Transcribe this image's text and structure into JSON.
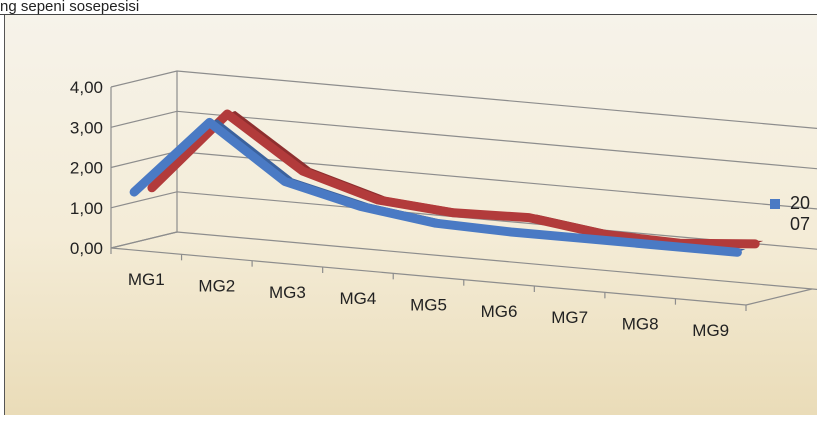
{
  "caption": "ng sepeni sosepesisi",
  "chart_data": {
    "type": "line",
    "style": "3d",
    "categories": [
      "MG1",
      "MG2",
      "MG3",
      "MG4",
      "MG5",
      "MG6",
      "MG7",
      "MG8",
      "MG9"
    ],
    "y_tick_labels": [
      "0,00",
      "1,00",
      "2,00",
      "3,00",
      "4,00"
    ],
    "ylim": [
      0,
      4
    ],
    "grid": true,
    "legend_position": "right",
    "series": [
      {
        "name": "20",
        "color": "#4a7ac4",
        "values": [
          1.25,
          3.15,
          1.85,
          1.4,
          1.15,
          1.1,
          1.1,
          1.1,
          1.1
        ]
      },
      {
        "name": "07",
        "color": "#b23b3b",
        "values": [
          1.25,
          3.25,
          2.0,
          1.45,
          1.3,
          1.35,
          1.1,
          1.05,
          1.2
        ]
      }
    ]
  }
}
